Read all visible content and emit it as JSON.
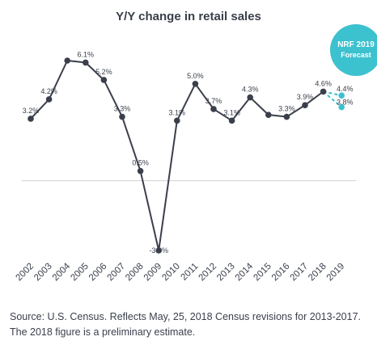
{
  "chart_data": {
    "type": "line",
    "title": "Y/Y change in retail sales",
    "categories": [
      "2002",
      "2003",
      "2004",
      "2005",
      "2006",
      "2007",
      "2008",
      "2009",
      "2010",
      "2011",
      "2012",
      "2013",
      "2014",
      "2015",
      "2016",
      "2017",
      "2018",
      "2019"
    ],
    "series": [
      {
        "name": "",
        "color": "#3a3f4b",
        "x": [
          "2002",
          "2003",
          "2004",
          "2005",
          "2006",
          "2007",
          "2008",
          "2009",
          "2010",
          "2011",
          "2012",
          "2013",
          "2014",
          "2015",
          "2016",
          "2017",
          "2018"
        ],
        "values": [
          3.2,
          4.2,
          6.2,
          6.1,
          5.2,
          3.3,
          0.5,
          -3.6,
          3.1,
          5.0,
          3.7,
          3.1,
          4.3,
          3.4,
          3.3,
          3.9,
          4.6
        ],
        "labels": [
          "3.2%",
          "4.2%",
          "",
          "6.1%",
          "5.2%",
          "3.3%",
          "0.5%",
          "-3.6%",
          "3.1%",
          "5.0%",
          "3.7%",
          "3.1%",
          "4.3%",
          "",
          "3.3%",
          "3.9%",
          "4.6%"
        ]
      },
      {
        "name": "NRF 2019 Forecast",
        "color": "#3cc1cf",
        "forecast": [
          {
            "from": "2018",
            "from_value": 4.6,
            "to": "2019",
            "value": 4.4,
            "label": "4.4%"
          },
          {
            "from": "2018",
            "from_value": 4.6,
            "to": "2019",
            "value": 3.8,
            "label": "3.8%"
          }
        ]
      }
    ],
    "ylim": [
      -3.6,
      6.2
    ],
    "zero_line": true,
    "grid": false,
    "badge": {
      "line1": "NRF 2019",
      "line2": "Forecast"
    }
  },
  "footer": {
    "line1": "Source: U.S. Census. Reflects May, 25, 2018 Census revisions for 2013-2017.",
    "line2": "The 2018 figure is a preliminary estimate."
  }
}
